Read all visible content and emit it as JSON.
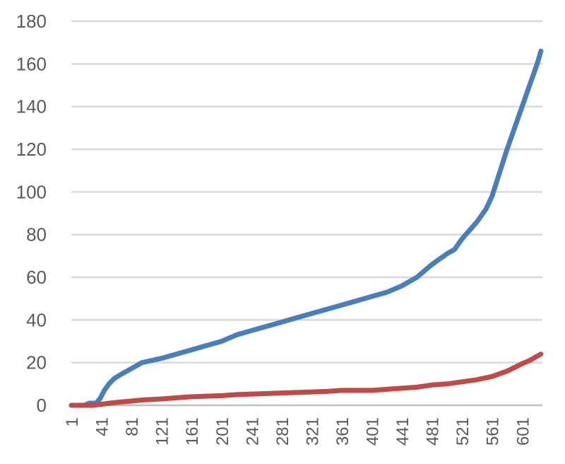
{
  "chart_data": {
    "type": "line",
    "title": "",
    "xlabel": "",
    "ylabel": "",
    "xlim": [
      1,
      628
    ],
    "ylim": [
      0,
      180
    ],
    "grid": true,
    "legend": "none",
    "y_ticks": [
      0,
      20,
      40,
      60,
      80,
      100,
      120,
      140,
      160,
      180
    ],
    "x_ticks": [
      "1",
      "41",
      "81",
      "121",
      "161",
      "201",
      "241",
      "281",
      "321",
      "361",
      "401",
      "441",
      "481",
      "521",
      "561",
      "601"
    ],
    "colors": {
      "grid": "#d9d9d9",
      "axis": "#bfbfbf",
      "tick_text": "#595959"
    },
    "series": [
      {
        "color": "#4a7ebb",
        "points": [
          [
            1,
            0
          ],
          [
            18,
            0
          ],
          [
            25,
            1
          ],
          [
            34,
            1
          ],
          [
            39,
            3
          ],
          [
            45,
            7
          ],
          [
            51,
            10
          ],
          [
            58,
            12.5
          ],
          [
            67,
            14.5
          ],
          [
            80,
            17
          ],
          [
            95,
            20
          ],
          [
            121,
            22
          ],
          [
            141,
            24
          ],
          [
            161,
            26
          ],
          [
            181,
            28
          ],
          [
            201,
            30
          ],
          [
            221,
            33
          ],
          [
            241,
            35
          ],
          [
            261,
            37
          ],
          [
            281,
            39
          ],
          [
            301,
            41
          ],
          [
            321,
            43
          ],
          [
            341,
            45
          ],
          [
            361,
            47
          ],
          [
            381,
            49
          ],
          [
            401,
            51
          ],
          [
            421,
            53
          ],
          [
            441,
            56
          ],
          [
            461,
            60
          ],
          [
            481,
            66
          ],
          [
            501,
            71
          ],
          [
            511,
            73
          ],
          [
            521,
            78
          ],
          [
            541,
            86
          ],
          [
            553,
            92
          ],
          [
            561,
            98
          ],
          [
            581,
            120
          ],
          [
            601,
            140
          ],
          [
            611,
            150
          ],
          [
            621,
            160
          ],
          [
            626,
            166
          ]
        ]
      },
      {
        "color": "#be4b48",
        "points": [
          [
            1,
            0
          ],
          [
            30,
            0
          ],
          [
            41,
            0.5
          ],
          [
            52,
            1
          ],
          [
            65,
            1.5
          ],
          [
            81,
            2
          ],
          [
            95,
            2.5
          ],
          [
            121,
            3
          ],
          [
            141,
            3.5
          ],
          [
            161,
            4
          ],
          [
            201,
            4.5
          ],
          [
            221,
            5
          ],
          [
            261,
            5.5
          ],
          [
            301,
            6
          ],
          [
            341,
            6.5
          ],
          [
            361,
            7
          ],
          [
            401,
            7
          ],
          [
            421,
            7.5
          ],
          [
            441,
            8
          ],
          [
            461,
            8.5
          ],
          [
            481,
            9.5
          ],
          [
            501,
            10
          ],
          [
            521,
            11
          ],
          [
            541,
            12
          ],
          [
            561,
            13.5
          ],
          [
            581,
            16
          ],
          [
            601,
            19.5
          ],
          [
            611,
            21
          ],
          [
            621,
            23
          ],
          [
            626,
            24
          ]
        ]
      }
    ]
  }
}
